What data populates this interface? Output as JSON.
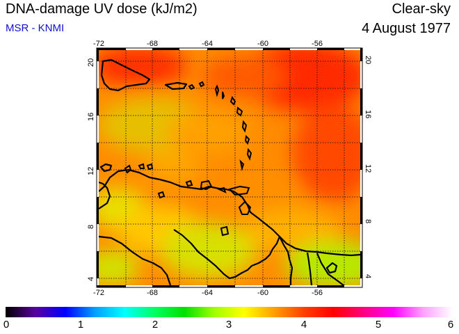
{
  "header": {
    "title": "DNA-damage UV dose (kJ/m2)",
    "subtitle": "MSR - KNMI",
    "mode": "Clear-sky",
    "date": "4 August 1977"
  },
  "map": {
    "lon_ticks": [
      "-72",
      "-68",
      "-64",
      "-60",
      "-56"
    ],
    "lat_ticks": [
      "20",
      "16",
      "12",
      "8",
      "4"
    ],
    "lon_range": [
      -72,
      -52.2
    ],
    "lat_range": [
      3.5,
      20.6
    ]
  },
  "colorbar": {
    "ticks": [
      "0",
      "1",
      "2",
      "3",
      "4",
      "5",
      "6"
    ],
    "range": [
      0,
      6
    ],
    "colors": [
      "#000000",
      "#5a00a0",
      "#0000ff",
      "#00a0ff",
      "#00ffff",
      "#00ff60",
      "#00e000",
      "#a0ff00",
      "#ffff00",
      "#ffa000",
      "#ff4000",
      "#ff0000",
      "#ff0080",
      "#ff00ff",
      "#ffa0ff",
      "#ffffff"
    ]
  }
}
